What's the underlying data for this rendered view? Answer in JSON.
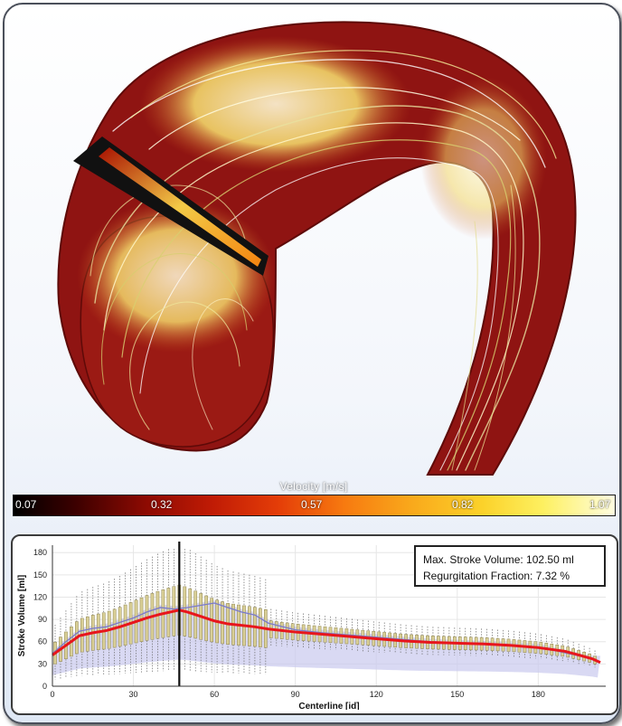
{
  "colorbar": {
    "title": "Velocity [m/s]",
    "ticks": [
      "0.07",
      "0.32",
      "0.57",
      "0.82",
      "1.07"
    ]
  },
  "info": {
    "max_stroke_volume": "Max. Stroke Volume: 102.50 ml",
    "regurgitation_fraction": "Regurgitation Fraction: 7.32 %"
  },
  "colors": {
    "mean_line": "#e8161c",
    "median_line": "#7a7ac8",
    "box_fill": "#d9cf96",
    "envelope": "#c9c9ee",
    "marker_line": "#111111"
  },
  "chart_data": {
    "type": "box",
    "xlabel": "Centerline [id]",
    "ylabel": "Stroke Volume [ml]",
    "xlim": [
      0,
      205
    ],
    "ylim": [
      0,
      190
    ],
    "xticks": [
      0,
      30,
      60,
      90,
      120,
      150,
      180
    ],
    "yticks": [
      0,
      30,
      60,
      90,
      120,
      150,
      180
    ],
    "marker_x": 47,
    "series": [
      {
        "name": "mean",
        "x": [
          0,
          5,
          10,
          15,
          20,
          25,
          30,
          35,
          40,
          45,
          47,
          50,
          55,
          60,
          65,
          70,
          75,
          80,
          90,
          100,
          110,
          120,
          130,
          140,
          150,
          160,
          170,
          180,
          190,
          200,
          203
        ],
        "y": [
          42,
          55,
          68,
          72,
          75,
          80,
          86,
          92,
          97,
          101,
          102.5,
          100,
          94,
          88,
          84,
          82,
          80,
          77,
          73,
          70,
          67,
          64,
          61,
          59,
          58,
          57,
          55,
          52,
          47,
          37,
          32
        ]
      },
      {
        "name": "median",
        "x": [
          0,
          5,
          10,
          15,
          20,
          25,
          30,
          35,
          40,
          45,
          50,
          55,
          60,
          65,
          70,
          75,
          80,
          90,
          100,
          120,
          140,
          160,
          180,
          200
        ],
        "y": [
          44,
          60,
          74,
          78,
          80,
          86,
          92,
          100,
          106,
          104,
          106,
          109,
          112,
          106,
          100,
          96,
          85,
          76,
          72,
          66,
          60,
          57,
          53,
          37
        ]
      }
    ]
  }
}
